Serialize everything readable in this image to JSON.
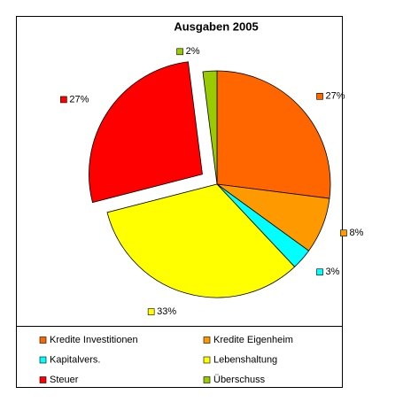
{
  "chart_data": {
    "type": "pie",
    "title": "Ausgaben 2005",
    "categories": [
      "Kredite Investitionen",
      "Kredite Eigenheim",
      "Kapitalvers.",
      "Lebenshaltung",
      "Steuer",
      "Überschuss"
    ],
    "values": [
      27,
      8,
      3,
      33,
      27,
      2
    ],
    "value_labels": [
      "27%",
      "8%",
      "3%",
      "33%",
      "27%",
      "2%"
    ],
    "colors": [
      "#ff6600",
      "#ff9900",
      "#00ffff",
      "#ffff00",
      "#ff0000",
      "#99cc00"
    ],
    "exploded": "Steuer",
    "legend": "bottom"
  }
}
